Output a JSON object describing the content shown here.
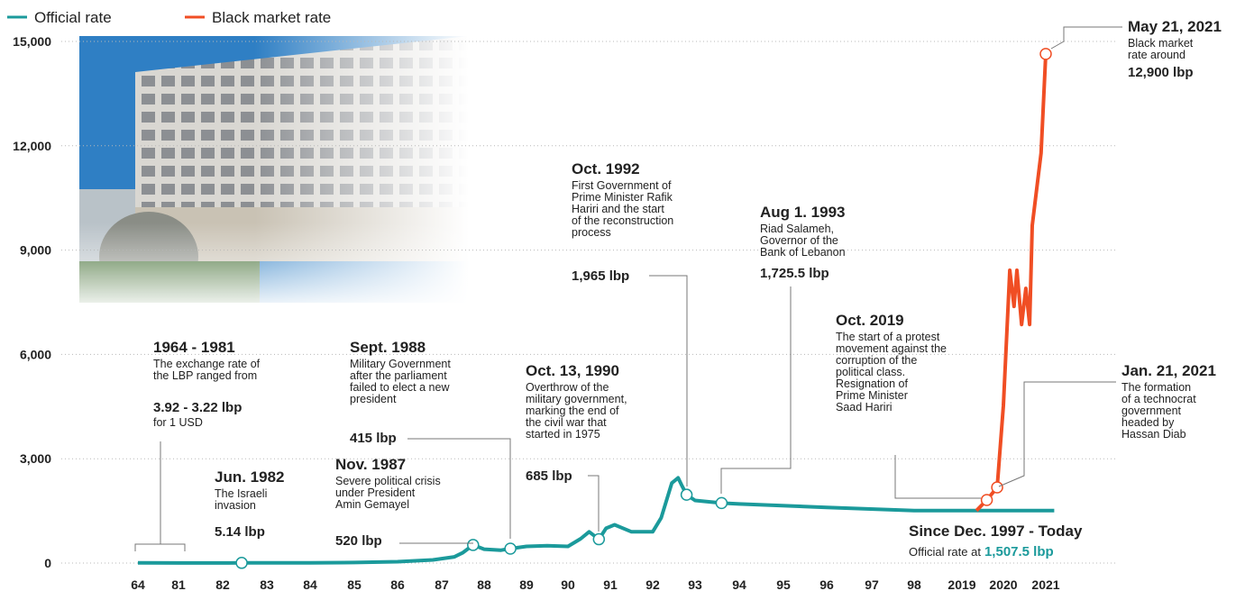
{
  "chart_data": {
    "type": "line",
    "xlim": [
      1964,
      2021
    ],
    "xticks": [
      {
        "value": 1964,
        "label": "64"
      },
      {
        "value": 1981,
        "label": "81"
      },
      {
        "value": 1982,
        "label": "82"
      },
      {
        "value": 1983,
        "label": "83"
      },
      {
        "value": 1984,
        "label": "84"
      },
      {
        "value": 1985,
        "label": "85"
      },
      {
        "value": 1986,
        "label": "86"
      },
      {
        "value": 1987,
        "label": "87"
      },
      {
        "value": 1988,
        "label": "88"
      },
      {
        "value": 1989,
        "label": "89"
      },
      {
        "value": 1990,
        "label": "90"
      },
      {
        "value": 1991,
        "label": "91"
      },
      {
        "value": 1992,
        "label": "92"
      },
      {
        "value": 1993,
        "label": "93"
      },
      {
        "value": 1994,
        "label": "94"
      },
      {
        "value": 1995,
        "label": "95"
      },
      {
        "value": 1996,
        "label": "96"
      },
      {
        "value": 1997,
        "label": "97"
      },
      {
        "value": 1998,
        "label": "98"
      },
      2019,
      2020,
      2021
    ],
    "ylim": [
      0,
      15000
    ],
    "yticks": [
      0,
      {
        "value": 3000,
        "label": "3,000"
      },
      {
        "value": 6000,
        "label": "6,000"
      },
      {
        "value": 9000,
        "label": "9,000"
      },
      {
        "value": 12000,
        "label": "12,000"
      },
      {
        "value": 15000,
        "label": "15,000"
      }
    ],
    "grid": true,
    "series": [
      {
        "name": "Official rate",
        "color": "#1b9a9b",
        "x": [
          1964,
          1981,
          1982.43,
          1984,
          1985,
          1986,
          1986.8,
          1987.3,
          1987.5,
          1987.74,
          1988,
          1988.4,
          1988.62,
          1989,
          1989.5,
          1990,
          1990.3,
          1990.5,
          1990.73,
          1990.9,
          1991.1,
          1991.5,
          1992,
          1992.2,
          1992.45,
          1992.6,
          1992.7,
          1992.8,
          1993,
          1993.6,
          1994,
          1996,
          1998,
          2019,
          2021.2
        ],
        "values": [
          3.92,
          3.22,
          5.14,
          8,
          15,
          40,
          90,
          180,
          300,
          520,
          400,
          370,
          415,
          480,
          500,
          480,
          700,
          900,
          685,
          1000,
          1100,
          900,
          900,
          1300,
          2300,
          2450,
          2200,
          1965,
          1800,
          1725.5,
          1700,
          1600,
          1507.5,
          1507.5,
          1507.5
        ]
      },
      {
        "name": "Black market rate",
        "color": "#f04e24",
        "x": [
          2019.35,
          2019.6,
          2019.85,
          2020,
          2020.15,
          2020.25,
          2020.32,
          2020.43,
          2020.53,
          2020.62,
          2020.68,
          2020.89,
          2021
        ],
        "values": [
          1507.5,
          1813,
          2176,
          4530,
          8420,
          7380,
          8420,
          6860,
          7900,
          6860,
          9710,
          11790,
          14640
        ]
      }
    ],
    "annotations": [
      {
        "title": "1964 - 1981",
        "color": "#1b9a9b",
        "text": [
          "The exchange rate of",
          "the LBP ranged from"
        ],
        "value": "3.92 - 3.22 lbp",
        "after": "for 1 USD"
      },
      {
        "title": "Jun. 1982",
        "color": "#1b9a9b",
        "text": [
          "The Israeli",
          "invasion"
        ],
        "value": "5.14 lbp"
      },
      {
        "title": "Nov. 1987",
        "color": "#1b9a9b",
        "text": [
          "Severe political crisis",
          "under President",
          "Amin Gemayel"
        ],
        "value": "520 lbp"
      },
      {
        "title": "Sept. 1988",
        "color": "#1b9a9b",
        "text": [
          "Military Government",
          "after the parliament",
          "failed to elect a new",
          "president"
        ],
        "value": "415 lbp"
      },
      {
        "title": "Oct. 13, 1990",
        "color": "#1b9a9b",
        "text": [
          "Overthrow of the",
          "military government,",
          "marking the end of",
          "the civil war that",
          "started in 1975"
        ],
        "value": "685 lbp"
      },
      {
        "title": "Oct. 1992",
        "color": "#1b9a9b",
        "text": [
          "First Government of",
          "Prime Minister Rafik",
          "Hariri and the start",
          "of the reconstruction",
          "process"
        ],
        "value": "1,965 lbp"
      },
      {
        "title": "Aug 1. 1993",
        "color": "#1b9a9b",
        "text": [
          "Riad Salameh,",
          "Governor of the",
          "Bank of Lebanon"
        ],
        "value": "1,725.5 lbp"
      },
      {
        "title": "Oct. 2019",
        "color": "#f04e24",
        "text": [
          "The start of a protest",
          "movement against the",
          "corruption of the",
          "political class.",
          "Resignation of",
          "Prime Minister",
          "Saad Hariri"
        ]
      },
      {
        "title": "Jan. 21, 2021",
        "color": "#f04e24",
        "text": [
          "The formation",
          "of a technocrat",
          "government",
          "headed by",
          "Hassan Diab"
        ]
      },
      {
        "title": "May 21, 2021",
        "color": "#f04e24",
        "text": [
          "Black market",
          "rate around"
        ],
        "value": "12,900 lbp"
      },
      {
        "title": "Since Dec. 1997 - Today",
        "color": "#1b9a9b",
        "note": "Official rate at",
        "value": "1,507.5 lbp"
      }
    ]
  }
}
